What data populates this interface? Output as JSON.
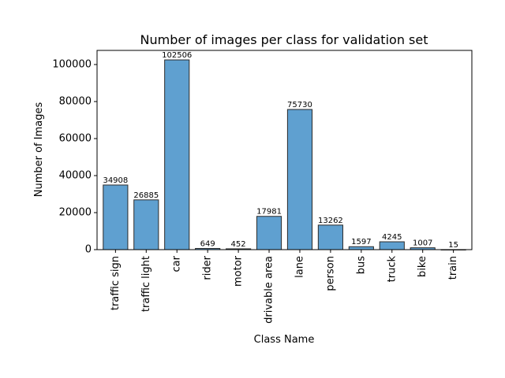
{
  "chart_data": {
    "type": "bar",
    "title": "Number of images per class for validation set",
    "xlabel": "Class Name",
    "ylabel": "Number of Images",
    "categories": [
      "traffic sign",
      "traffic light",
      "car",
      "rider",
      "motor",
      "drivable area",
      "lane",
      "person",
      "bus",
      "truck",
      "bike",
      "train"
    ],
    "values": [
      34908,
      26885,
      102506,
      649,
      452,
      17981,
      75730,
      13262,
      1597,
      4245,
      1007,
      15
    ],
    "data_labels": [
      "34908",
      "26885",
      "102506",
      "649",
      "452",
      "17981",
      "75730",
      "13262",
      "1597",
      "4245",
      "1007",
      "15"
    ],
    "yticks": [
      0,
      20000,
      40000,
      60000,
      80000,
      100000
    ],
    "ytick_labels": [
      "0",
      "20000",
      "40000",
      "60000",
      "80000",
      "100000"
    ],
    "ylim": [
      0,
      107631
    ],
    "bar_color": "#5fa0d0",
    "bar_edge_color": "#2b2b2b",
    "grid": false,
    "legend": "none"
  }
}
